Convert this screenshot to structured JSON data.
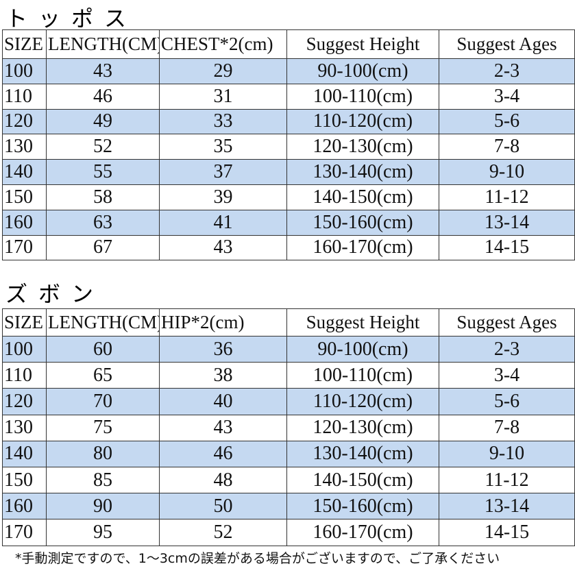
{
  "tops": {
    "title": "トッポス",
    "headers": [
      "SIZE",
      "LENGTH(CM)",
      "CHEST*2(cm)",
      "Suggest Height",
      "Suggest Ages"
    ],
    "rows": [
      [
        "100",
        "43",
        "29",
        "90-100(cm)",
        "2-3"
      ],
      [
        "110",
        "46",
        "31",
        "100-110(cm)",
        "3-4"
      ],
      [
        "120",
        "49",
        "33",
        "110-120(cm)",
        "5-6"
      ],
      [
        "130",
        "52",
        "35",
        "120-130(cm)",
        "7-8"
      ],
      [
        "140",
        "55",
        "37",
        "130-140(cm)",
        "9-10"
      ],
      [
        "150",
        "58",
        "39",
        "140-150(cm)",
        "11-12"
      ],
      [
        "160",
        "63",
        "41",
        "150-160(cm)",
        "13-14"
      ],
      [
        "170",
        "67",
        "43",
        "160-170(cm)",
        "14-15"
      ]
    ]
  },
  "pants": {
    "title": "ズボン",
    "headers": [
      "SIZE",
      "LENGTH(CM)",
      "HIP*2(cm)",
      "Suggest Height",
      "Suggest Ages"
    ],
    "rows": [
      [
        "100",
        "60",
        "36",
        "90-100(cm)",
        "2-3"
      ],
      [
        "110",
        "65",
        "38",
        "100-110(cm)",
        "3-4"
      ],
      [
        "120",
        "70",
        "40",
        "110-120(cm)",
        "5-6"
      ],
      [
        "130",
        "75",
        "43",
        "120-130(cm)",
        "7-8"
      ],
      [
        "140",
        "80",
        "46",
        "130-140(cm)",
        "9-10"
      ],
      [
        "150",
        "85",
        "48",
        "140-150(cm)",
        "11-12"
      ],
      [
        "160",
        "90",
        "50",
        "150-160(cm)",
        "13-14"
      ],
      [
        "170",
        "95",
        "52",
        "160-170(cm)",
        "14-15"
      ]
    ]
  },
  "note": "*手動測定ですので、1〜3cmの誤差がある場合がございますので、ご了承ください",
  "colors": {
    "row_highlight": "#c5d9f1",
    "border": "#333333"
  }
}
